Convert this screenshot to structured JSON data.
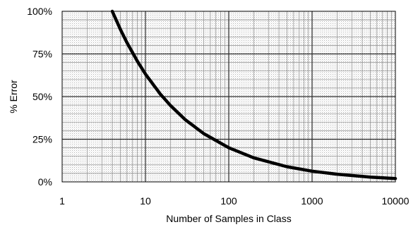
{
  "chart_data": {
    "type": "line",
    "title": "",
    "xlabel": "Number of Samples in Class",
    "ylabel": "% Error",
    "x_scale": "log",
    "xlim": [
      1,
      10000
    ],
    "ylim": [
      0,
      100
    ],
    "x_ticks": [
      "1",
      "10",
      "100",
      "1000",
      "10000"
    ],
    "y_ticks": [
      "0%",
      "25%",
      "50%",
      "75%",
      "100%"
    ],
    "grid": true,
    "legend": "none",
    "series": [
      {
        "color": "#000000",
        "x": [
          4,
          5,
          6,
          8,
          10,
          15,
          20,
          30,
          50,
          100,
          200,
          500,
          1000,
          2000,
          5000,
          10000
        ],
        "y": [
          100,
          89.4,
          81.6,
          70.7,
          63.2,
          51.6,
          44.7,
          36.5,
          28.3,
          20.0,
          14.1,
          8.9,
          6.3,
          4.5,
          2.8,
          2.0
        ]
      }
    ]
  }
}
